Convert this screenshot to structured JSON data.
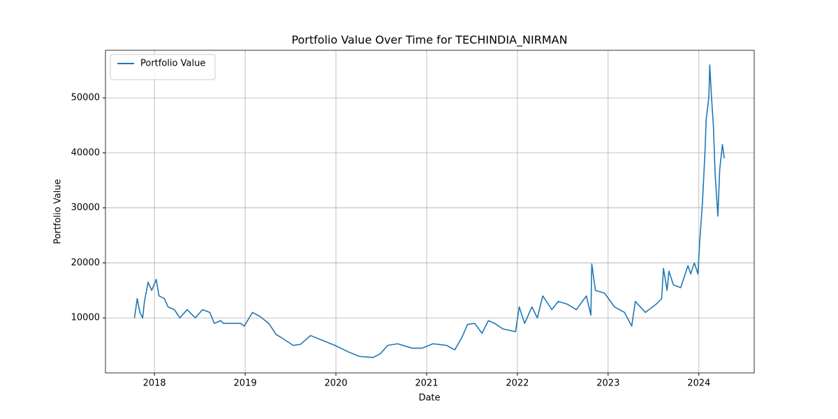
{
  "chart_data": {
    "type": "line",
    "title": "Portfolio Value Over Time for TECHINDIA_NIRMAN",
    "xlabel": "Date",
    "ylabel": "Portfolio Value",
    "x": [
      2017.78,
      2017.81,
      2017.84,
      2017.87,
      2017.89,
      2017.93,
      2017.97,
      2018.02,
      2018.05,
      2018.11,
      2018.15,
      2018.22,
      2018.28,
      2018.36,
      2018.45,
      2018.53,
      2018.61,
      2018.66,
      2018.73,
      2018.76,
      2018.95,
      2018.99,
      2019.08,
      2019.16,
      2019.26,
      2019.34,
      2019.41,
      2019.53,
      2019.61,
      2019.72,
      2019.84,
      2019.99,
      2020.14,
      2020.26,
      2020.41,
      2020.49,
      2020.57,
      2020.68,
      2020.84,
      2020.95,
      2021.07,
      2021.22,
      2021.31,
      2021.39,
      2021.45,
      2021.53,
      2021.61,
      2021.68,
      2021.75,
      2021.84,
      2021.98,
      2022.02,
      2022.08,
      2022.16,
      2022.22,
      2022.28,
      2022.38,
      2022.45,
      2022.55,
      2022.65,
      2022.76,
      2022.81,
      2022.82,
      2022.86,
      2022.96,
      2023.07,
      2023.18,
      2023.26,
      2023.3,
      2023.41,
      2023.53,
      2023.59,
      2023.61,
      2023.65,
      2023.67,
      2023.72,
      2023.8,
      2023.88,
      2023.91,
      2023.95,
      2023.99,
      2024.01,
      2024.04,
      2024.07,
      2024.08,
      2024.11,
      2024.12,
      2024.14,
      2024.16,
      2024.18,
      2024.21,
      2024.23,
      2024.26,
      2024.28
    ],
    "series": [
      {
        "name": "Portfolio Value",
        "color": "#1f77b4",
        "values": [
          10000,
          13500,
          11000,
          10000,
          13000,
          16500,
          15000,
          17000,
          14000,
          13500,
          12000,
          11500,
          10000,
          11500,
          10000,
          11500,
          11000,
          9000,
          9500,
          9000,
          9000,
          8500,
          11000,
          10300,
          9000,
          7000,
          6300,
          5000,
          5200,
          6800,
          6000,
          5000,
          3800,
          3000,
          2800,
          3500,
          5000,
          5300,
          4500,
          4500,
          5300,
          5000,
          4200,
          6500,
          8800,
          9000,
          7200,
          9500,
          9000,
          8000,
          7500,
          12000,
          9000,
          12000,
          10000,
          14000,
          11500,
          13000,
          12500,
          11500,
          14000,
          10500,
          19800,
          15000,
          14500,
          12000,
          11000,
          8500,
          13000,
          11000,
          12500,
          13500,
          19000,
          15000,
          18500,
          16000,
          15500,
          19500,
          18000,
          20000,
          18000,
          24000,
          31000,
          41000,
          46000,
          50000,
          56000,
          50000,
          45000,
          36000,
          28500,
          37000,
          41500,
          39000
        ]
      }
    ],
    "xlim": [
      2017.46,
      2024.61
    ],
    "xticks": [
      2018,
      2019,
      2020,
      2021,
      2022,
      2023,
      2024
    ],
    "ylim": [
      0,
      58650
    ],
    "yticks": [
      10000,
      20000,
      30000,
      40000,
      50000
    ],
    "grid": true,
    "legend": "upper left"
  }
}
